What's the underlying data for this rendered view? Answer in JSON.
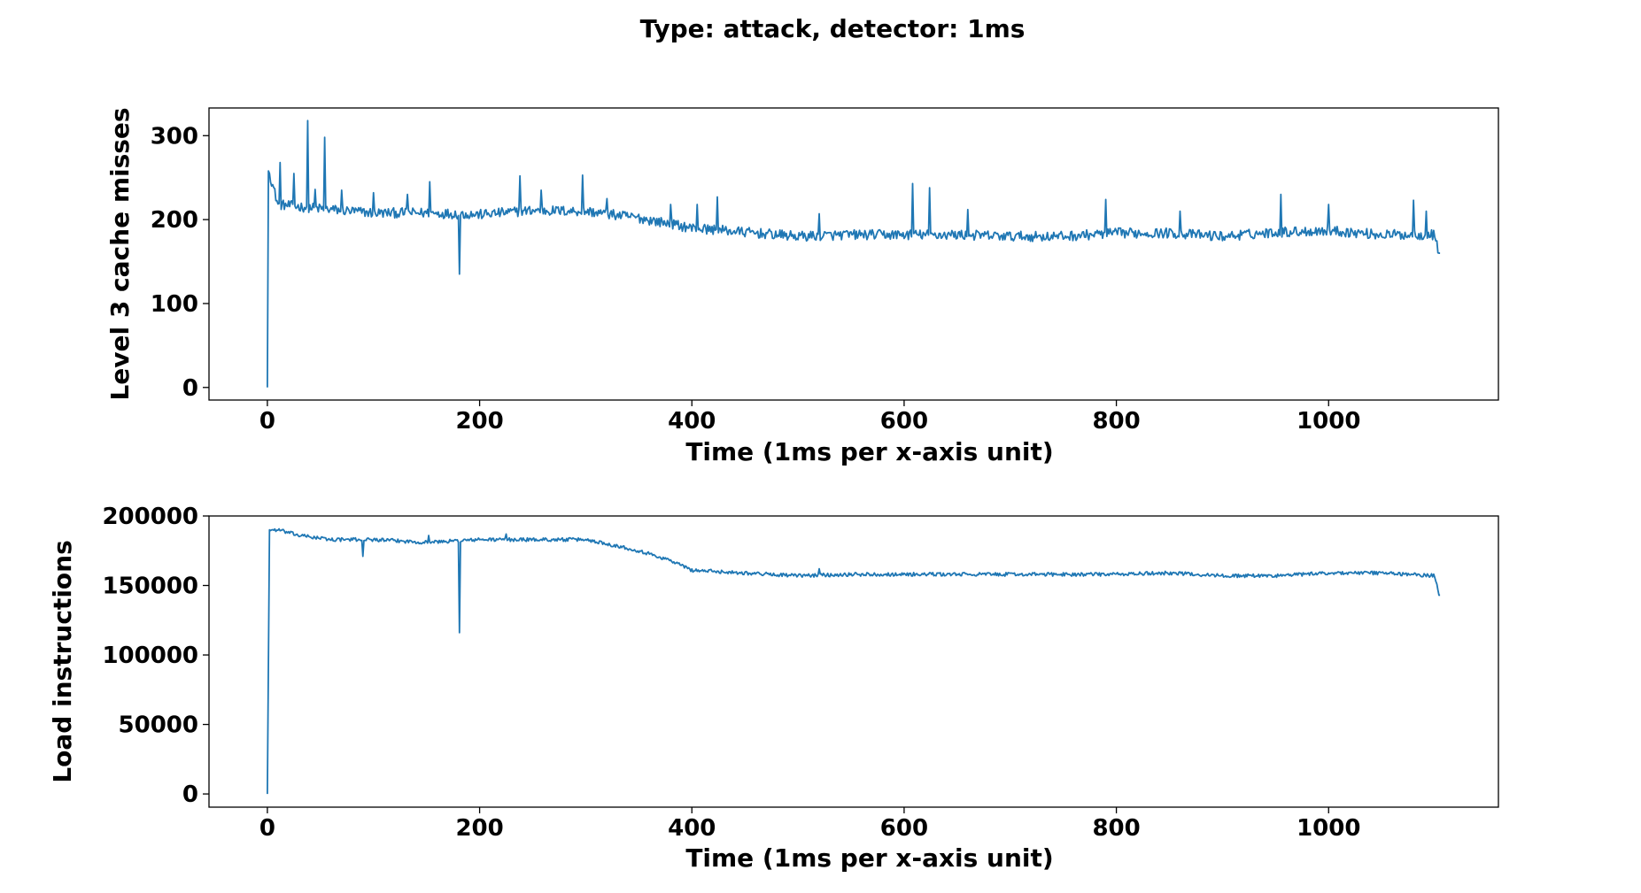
{
  "figure": {
    "title": "Type: attack,   detector: 1ms"
  },
  "colors": {
    "series": "#1f77b4",
    "axes": "#000000",
    "background": "#ffffff"
  },
  "chart_data": [
    {
      "type": "line",
      "xlabel": "Time (1ms per x-axis unit)",
      "ylabel": "Level 3 cache misses",
      "xlim": [
        -55,
        1160
      ],
      "ylim": [
        -15,
        333
      ],
      "xticks": [
        0,
        200,
        400,
        600,
        800,
        1000
      ],
      "xtick_labels": [
        "0",
        "200",
        "400",
        "600",
        "800",
        "1000"
      ],
      "yticks": [
        0,
        100,
        200,
        300
      ],
      "ytick_labels": [
        "0",
        "100",
        "200",
        "300"
      ],
      "grid": false,
      "x_end": 1105,
      "series": [
        {
          "color": "#1f77b4",
          "keypoints": [
            [
              0,
              0
            ],
            [
              2,
              255
            ],
            [
              10,
              218
            ],
            [
              50,
              213
            ],
            [
              100,
              208
            ],
            [
              150,
              208
            ],
            [
              200,
              206
            ],
            [
              250,
              211
            ],
            [
              300,
              210
            ],
            [
              350,
              202
            ],
            [
              400,
              190
            ],
            [
              450,
              185
            ],
            [
              500,
              180
            ],
            [
              550,
              182
            ],
            [
              600,
              182
            ],
            [
              650,
              182
            ],
            [
              700,
              180
            ],
            [
              750,
              180
            ],
            [
              800,
              184
            ],
            [
              850,
              184
            ],
            [
              900,
              180
            ],
            [
              950,
              185
            ],
            [
              1000,
              187
            ],
            [
              1050,
              182
            ],
            [
              1100,
              182
            ],
            [
              1104,
              160
            ]
          ],
          "noise": 6,
          "spikes": [
            [
              1,
              258
            ],
            [
              12,
              268
            ],
            [
              25,
              255
            ],
            [
              38,
              318
            ],
            [
              45,
              236
            ],
            [
              54,
              298
            ],
            [
              70,
              235
            ],
            [
              100,
              232
            ],
            [
              132,
              230
            ],
            [
              153,
              245
            ],
            [
              181,
              135
            ],
            [
              238,
              252
            ],
            [
              258,
              235
            ],
            [
              297,
              253
            ],
            [
              320,
              225
            ],
            [
              380,
              218
            ],
            [
              405,
              218
            ],
            [
              424,
              227
            ],
            [
              520,
              207
            ],
            [
              608,
              243
            ],
            [
              624,
              238
            ],
            [
              660,
              212
            ],
            [
              790,
              224
            ],
            [
              860,
              210
            ],
            [
              955,
              230
            ],
            [
              1000,
              218
            ],
            [
              1080,
              223
            ],
            [
              1092,
              210
            ]
          ]
        }
      ]
    },
    {
      "type": "line",
      "xlabel": "Time (1ms per x-axis unit)",
      "ylabel": "Load instructions",
      "xlim": [
        -55,
        1160
      ],
      "ylim": [
        -9500,
        200000
      ],
      "xticks": [
        0,
        200,
        400,
        600,
        800,
        1000
      ],
      "xtick_labels": [
        "0",
        "200",
        "400",
        "600",
        "800",
        "1000"
      ],
      "yticks": [
        0,
        50000,
        100000,
        150000,
        200000
      ],
      "ytick_labels": [
        "0",
        "50000",
        "100000",
        "150000",
        "200000"
      ],
      "grid": false,
      "x_end": 1105,
      "series": [
        {
          "color": "#1f77b4",
          "keypoints": [
            [
              0,
              0
            ],
            [
              2,
              190000
            ],
            [
              10,
              190000
            ],
            [
              30,
              186000
            ],
            [
              60,
              183000
            ],
            [
              100,
              183000
            ],
            [
              150,
              181000
            ],
            [
              200,
              183000
            ],
            [
              250,
              183000
            ],
            [
              300,
              183000
            ],
            [
              320,
              180000
            ],
            [
              350,
              175000
            ],
            [
              380,
              168000
            ],
            [
              400,
              161000
            ],
            [
              450,
              159000
            ],
            [
              500,
              157000
            ],
            [
              550,
              158000
            ],
            [
              600,
              158000
            ],
            [
              700,
              158000
            ],
            [
              800,
              158000
            ],
            [
              850,
              159000
            ],
            [
              900,
              157000
            ],
            [
              950,
              157000
            ],
            [
              1000,
              159000
            ],
            [
              1050,
              159000
            ],
            [
              1100,
              157000
            ],
            [
              1104,
              143000
            ]
          ],
          "noise": 1300,
          "spikes": [
            [
              90,
              171000
            ],
            [
              152,
              186000
            ],
            [
              181,
              116000
            ],
            [
              225,
              187000
            ],
            [
              520,
              162000
            ],
            [
              1102,
              151000
            ]
          ]
        }
      ]
    }
  ]
}
